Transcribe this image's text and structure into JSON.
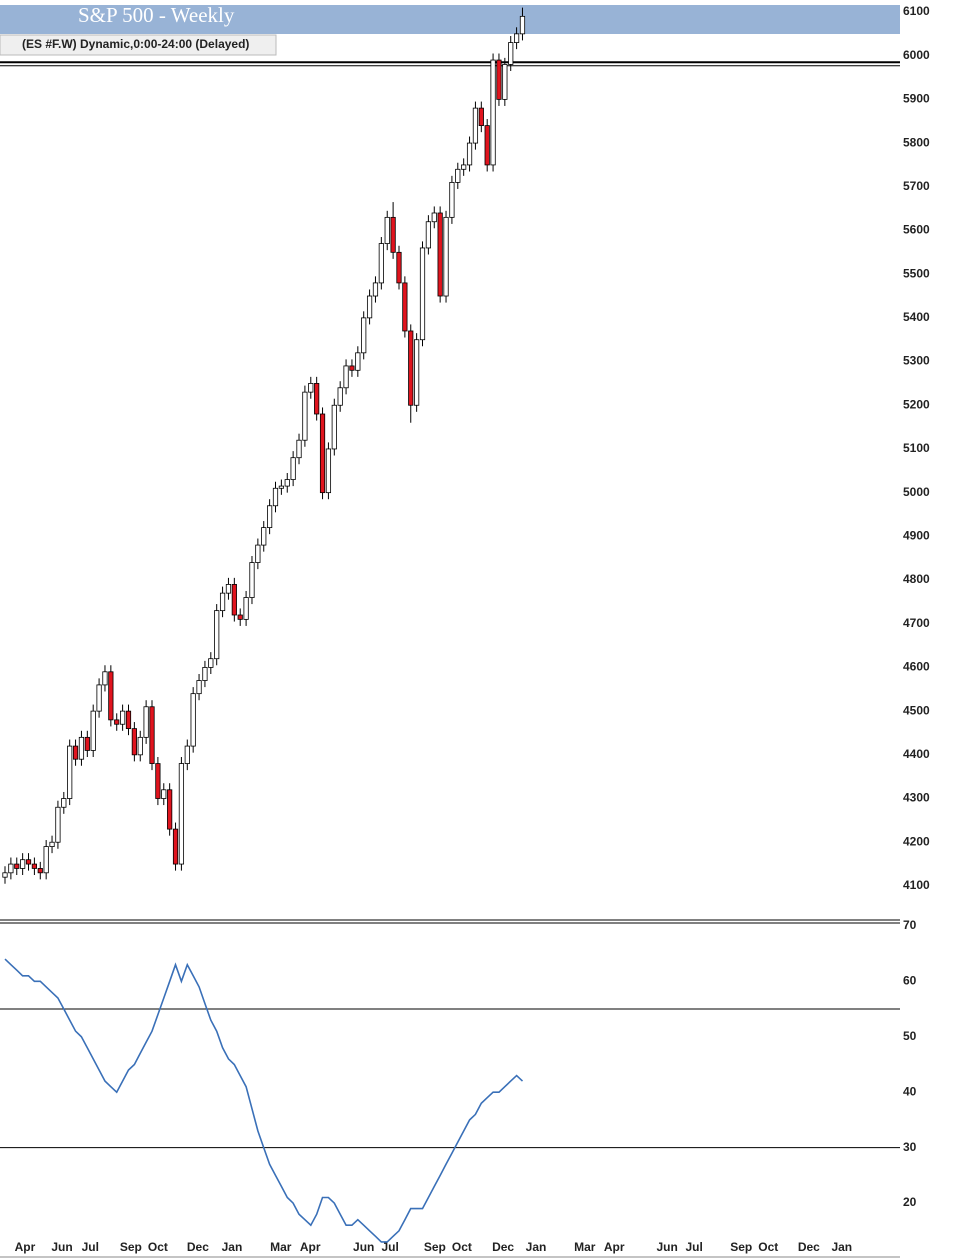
{
  "chart_data": [
    {
      "type": "candlestick",
      "title": "S&P 500 - Weekly",
      "subtitle": "(ES #F.W) Dynamic,0:00-24:00 (Delayed)",
      "up_color": "#ffffff",
      "down_color": "#e0141e",
      "x": [
        0,
        1,
        2,
        3,
        4,
        5,
        6,
        7,
        8,
        9,
        10,
        11,
        12,
        13,
        14,
        15,
        16,
        17,
        18,
        19,
        20,
        21,
        22,
        23,
        24,
        25,
        26,
        27,
        28,
        29,
        30,
        31,
        32,
        33,
        34,
        35,
        36,
        37,
        38,
        39,
        40,
        41,
        42,
        43,
        44,
        45,
        46,
        47,
        48,
        49,
        50,
        51,
        52,
        53,
        54,
        55,
        56,
        57,
        58,
        59,
        60,
        61,
        62,
        63,
        64,
        65,
        66,
        67,
        68,
        69,
        70,
        71,
        72,
        73,
        74,
        75,
        76,
        77,
        78,
        79,
        80,
        81,
        82,
        83,
        84,
        85,
        86,
        87,
        88
      ],
      "open": [
        4120,
        4130,
        4150,
        4140,
        4160,
        4150,
        4140,
        4130,
        4190,
        4200,
        4280,
        4300,
        4420,
        4390,
        4440,
        4410,
        4500,
        4560,
        4590,
        4480,
        4470,
        4500,
        4460,
        4400,
        4440,
        4510,
        4380,
        4300,
        4320,
        4230,
        4150,
        4380,
        4420,
        4540,
        4570,
        4600,
        4620,
        4730,
        4770,
        4790,
        4720,
        4710,
        4760,
        4840,
        4880,
        4920,
        4970,
        5010,
        5015,
        5030,
        5080,
        5120,
        5230,
        5250,
        5180,
        5000,
        5100,
        5200,
        5240,
        5290,
        5280,
        5320,
        5400,
        5450,
        5480,
        5570,
        5630,
        5550,
        5480,
        5370,
        5200,
        5350,
        5560,
        5620,
        5640,
        5450,
        5630,
        5710,
        5740,
        5750,
        5800,
        5880,
        5840,
        5750,
        5990,
        5900,
        5980,
        6030,
        6050
      ],
      "high": [
        4145,
        4165,
        4165,
        4175,
        4175,
        4165,
        4155,
        4205,
        4215,
        4295,
        4315,
        4435,
        4435,
        4455,
        4455,
        4515,
        4575,
        4605,
        4605,
        4495,
        4515,
        4515,
        4475,
        4455,
        4525,
        4525,
        4395,
        4335,
        4335,
        4245,
        4395,
        4435,
        4555,
        4585,
        4615,
        4635,
        4745,
        4785,
        4805,
        4805,
        4735,
        4775,
        4855,
        4895,
        4935,
        4985,
        5025,
        5030,
        5045,
        5095,
        5135,
        5245,
        5265,
        5265,
        5195,
        5115,
        5215,
        5255,
        5305,
        5305,
        5335,
        5415,
        5465,
        5495,
        5585,
        5645,
        5665,
        5565,
        5495,
        5385,
        5365,
        5575,
        5635,
        5655,
        5655,
        5645,
        5725,
        5755,
        5765,
        5815,
        5895,
        5895,
        5855,
        6005,
        6005,
        5995,
        6045,
        6065,
        6110
      ],
      "low": [
        4105,
        4115,
        4125,
        4125,
        4135,
        4125,
        4115,
        4115,
        4175,
        4185,
        4265,
        4285,
        4375,
        4375,
        4395,
        4395,
        4485,
        4545,
        4465,
        4455,
        4455,
        4445,
        4385,
        4385,
        4425,
        4365,
        4285,
        4285,
        4215,
        4135,
        4135,
        4365,
        4405,
        4525,
        4555,
        4585,
        4605,
        4715,
        4755,
        4705,
        4695,
        4695,
        4745,
        4825,
        4865,
        4905,
        4955,
        4995,
        5000,
        5015,
        5065,
        5105,
        5215,
        5165,
        4985,
        4985,
        5085,
        5185,
        5225,
        5265,
        5265,
        5305,
        5385,
        5435,
        5465,
        5555,
        5535,
        5465,
        5355,
        5160,
        5185,
        5335,
        5545,
        5605,
        5435,
        5435,
        5615,
        5695,
        5725,
        5735,
        5785,
        5825,
        5735,
        5735,
        5885,
        5885,
        5965,
        6015,
        6035
      ],
      "close": [
        4130,
        4150,
        4140,
        4160,
        4150,
        4140,
        4130,
        4190,
        4200,
        4280,
        4300,
        4420,
        4390,
        4440,
        4410,
        4500,
        4560,
        4590,
        4480,
        4470,
        4500,
        4460,
        4400,
        4440,
        4510,
        4380,
        4300,
        4320,
        4230,
        4150,
        4380,
        4420,
        4540,
        4570,
        4600,
        4620,
        4730,
        4770,
        4790,
        4720,
        4710,
        4760,
        4840,
        4880,
        4920,
        4970,
        5010,
        5015,
        5030,
        5080,
        5120,
        5230,
        5250,
        5180,
        5000,
        5100,
        5200,
        5240,
        5290,
        5280,
        5320,
        5400,
        5450,
        5480,
        5570,
        5630,
        5550,
        5480,
        5370,
        5200,
        5350,
        5560,
        5620,
        5640,
        5450,
        5630,
        5710,
        5740,
        5750,
        5800,
        5880,
        5840,
        5750,
        5990,
        5900,
        5980,
        6030,
        6050,
        6090
      ],
      "xlim": [
        -0.85,
        152.2
      ],
      "ylim": [
        4022,
        6116
      ],
      "yticks": [
        4100,
        4200,
        4300,
        4400,
        4500,
        4600,
        4700,
        4800,
        4900,
        5000,
        5100,
        5200,
        5300,
        5400,
        5500,
        5600,
        5700,
        5800,
        5900,
        6000,
        6100
      ],
      "hlines": [
        5985
      ]
    },
    {
      "type": "line",
      "x": [
        0,
        1,
        2,
        3,
        4,
        5,
        6,
        7,
        8,
        9,
        10,
        11,
        12,
        13,
        14,
        15,
        16,
        17,
        18,
        19,
        20,
        21,
        22,
        23,
        24,
        25,
        26,
        27,
        28,
        29,
        30,
        31,
        32,
        33,
        34,
        35,
        36,
        37,
        38,
        39,
        40,
        41,
        42,
        43,
        44,
        45,
        46,
        47,
        48,
        49,
        50,
        51,
        52,
        53,
        54,
        55,
        56,
        57,
        58,
        59,
        60,
        61,
        62,
        63,
        64,
        65,
        66,
        67,
        68,
        69,
        70,
        71,
        72,
        73,
        74,
        75,
        76,
        77,
        78,
        79,
        80,
        81,
        82,
        83,
        84,
        85,
        86,
        87,
        88
      ],
      "series": [
        {
          "color": "#3a70b8",
          "values": [
            64,
            63,
            62,
            61,
            61,
            60,
            60,
            59,
            58,
            57,
            55,
            53,
            51,
            50,
            48,
            46,
            44,
            42,
            41,
            40,
            42,
            44,
            45,
            47,
            49,
            51,
            54,
            57,
            60,
            63,
            60,
            63,
            61,
            59,
            56,
            53,
            51,
            48,
            46,
            45,
            43,
            41,
            37,
            33,
            30,
            27,
            25,
            23,
            21,
            20,
            18,
            17,
            16,
            18,
            21,
            21,
            20,
            18,
            16,
            16,
            17,
            16,
            15,
            14,
            13,
            13,
            14,
            15,
            17,
            19,
            19,
            19,
            21,
            23,
            25,
            27,
            29,
            31,
            33,
            35,
            36,
            38,
            39,
            40,
            40,
            41,
            42,
            43,
            42
          ]
        }
      ],
      "xlim": [
        -0.85,
        152.2
      ],
      "ylim": [
        13.7,
        70.7
      ],
      "yticks": [
        20,
        30,
        40,
        50,
        60,
        70
      ],
      "hlines": [
        55,
        30
      ],
      "xticks": [
        {
          "value": 3.4,
          "label": "Apr"
        },
        {
          "value": 9.7,
          "label": "Jun"
        },
        {
          "value": 14.5,
          "label": "Jul"
        },
        {
          "value": 21.4,
          "label": "Sep"
        },
        {
          "value": 26,
          "label": "Oct"
        },
        {
          "value": 32.8,
          "label": "Dec"
        },
        {
          "value": 38.6,
          "label": "Jan"
        },
        {
          "value": 46.9,
          "label": "Mar"
        },
        {
          "value": 51.9,
          "label": "Apr"
        },
        {
          "value": 61,
          "label": "Jun"
        },
        {
          "value": 65.5,
          "label": "Jul"
        },
        {
          "value": 73.1,
          "label": "Sep"
        },
        {
          "value": 77.7,
          "label": "Oct"
        },
        {
          "value": 84.7,
          "label": "Dec"
        },
        {
          "value": 90.3,
          "label": "Jan"
        },
        {
          "value": 98.6,
          "label": "Mar"
        },
        {
          "value": 103.6,
          "label": "Apr"
        },
        {
          "value": 112.6,
          "label": "Jun"
        },
        {
          "value": 117.2,
          "label": "Jul"
        },
        {
          "value": 125.2,
          "label": "Sep"
        },
        {
          "value": 129.8,
          "label": "Oct"
        },
        {
          "value": 136.7,
          "label": "Dec"
        },
        {
          "value": 142.3,
          "label": "Jan"
        }
      ]
    }
  ]
}
